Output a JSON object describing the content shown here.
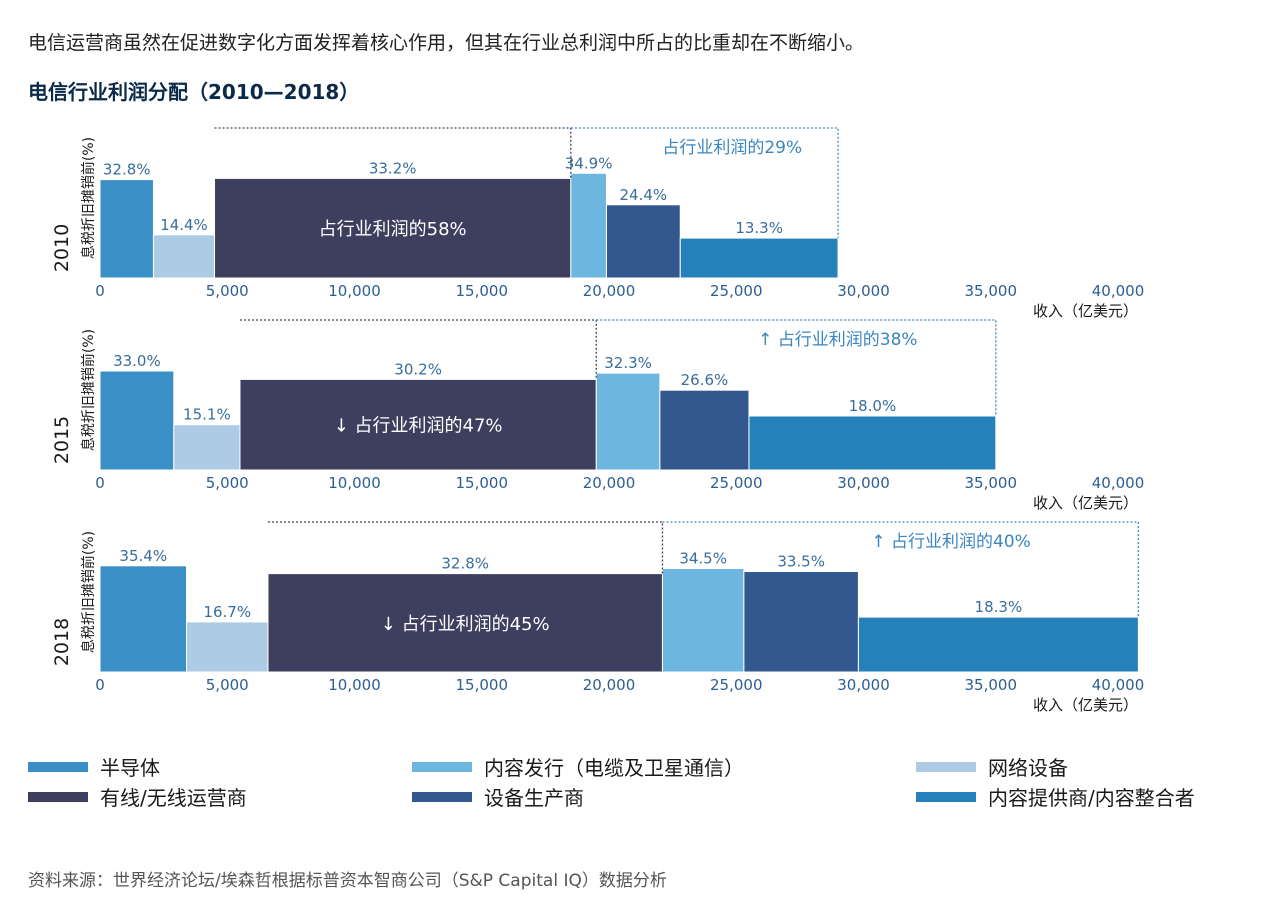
{
  "headline": "电信运营商虽然在促进数字化方面发挥着核心作用，但其在行业总利润中所占的比重却在不断缩小。",
  "chart_title": "电信行业利润分配（2010—2018）",
  "source": "资料来源：世界经济论坛/埃森哲根据标普资本智商公司（S&P Capital IQ）数据分析",
  "colors": {
    "semiconductor": "#3a8fc6",
    "network": "#aecbe6",
    "operator": "#3e3f5e",
    "content_dist": "#6db6df",
    "equipment": "#33588f",
    "content_provider": "#2680ba",
    "axis_text": "#2c5e93",
    "label_text": "#3a6e9c",
    "callout": "#3a86c0"
  },
  "legend": [
    {
      "key": "semiconductor",
      "label": "半导体"
    },
    {
      "key": "content_dist",
      "label": "内容发行（电缆及卫星通信）"
    },
    {
      "key": "network",
      "label": "网络设备"
    },
    {
      "key": "operator",
      "label": "有线/无线运营商"
    },
    {
      "key": "equipment",
      "label": "设备生产商"
    },
    {
      "key": "content_provider",
      "label": "内容提供商/内容整合者"
    }
  ],
  "chart_data": {
    "type": "bar",
    "subtype": "marimekko",
    "xlabel": "收入（亿美元）",
    "ylabel": "息税折旧摊销前(%)",
    "xlim": [
      0,
      40000
    ],
    "xticks": [
      0,
      5000,
      10000,
      15000,
      20000,
      25000,
      30000,
      35000,
      40000
    ],
    "xtick_labels": [
      "0",
      "5,000",
      "10,000",
      "15,000",
      "20,000",
      "25,000",
      "30,000",
      "35,000",
      "40,000"
    ],
    "panels": [
      {
        "year": "2010",
        "segments": [
          {
            "key": "semiconductor",
            "start": 0,
            "end": 2100,
            "value": 32.8,
            "label": "32.8%"
          },
          {
            "key": "network",
            "start": 2100,
            "end": 4500,
            "value": 14.4,
            "label": "14.4%"
          },
          {
            "key": "operator",
            "start": 4500,
            "end": 18500,
            "value": 33.2,
            "label": "33.2%"
          },
          {
            "key": "content_dist",
            "start": 18500,
            "end": 19900,
            "value": 34.9,
            "label": "34.9%"
          },
          {
            "key": "equipment",
            "start": 19900,
            "end": 22800,
            "value": 24.4,
            "label": "24.4%"
          },
          {
            "key": "content_provider",
            "start": 22800,
            "end": 29000,
            "value": 13.3,
            "label": "13.3%"
          }
        ],
        "operator_share": "占行业利润的58%",
        "content_share": "占行业利润的29%",
        "operator_trend": "",
        "content_trend": ""
      },
      {
        "year": "2015",
        "segments": [
          {
            "key": "semiconductor",
            "start": 0,
            "end": 2900,
            "value": 33.0,
            "label": "33.0%"
          },
          {
            "key": "network",
            "start": 2900,
            "end": 5500,
            "value": 15.1,
            "label": "15.1%"
          },
          {
            "key": "operator",
            "start": 5500,
            "end": 19500,
            "value": 30.2,
            "label": "30.2%"
          },
          {
            "key": "content_dist",
            "start": 19500,
            "end": 22000,
            "value": 32.3,
            "label": "32.3%"
          },
          {
            "key": "equipment",
            "start": 22000,
            "end": 25500,
            "value": 26.6,
            "label": "26.6%"
          },
          {
            "key": "content_provider",
            "start": 25500,
            "end": 35200,
            "value": 18.0,
            "label": "18.0%"
          }
        ],
        "operator_share": "占行业利润的47%",
        "content_share": "占行业利润的38%",
        "operator_trend": "down",
        "content_trend": "up"
      },
      {
        "year": "2018",
        "segments": [
          {
            "key": "semiconductor",
            "start": 0,
            "end": 3400,
            "value": 35.4,
            "label": "35.4%"
          },
          {
            "key": "network",
            "start": 3400,
            "end": 6600,
            "value": 16.7,
            "label": "16.7%"
          },
          {
            "key": "operator",
            "start": 6600,
            "end": 22100,
            "value": 32.8,
            "label": "32.8%"
          },
          {
            "key": "content_dist",
            "start": 22100,
            "end": 25300,
            "value": 34.5,
            "label": "34.5%"
          },
          {
            "key": "equipment",
            "start": 25300,
            "end": 29800,
            "value": 33.5,
            "label": "33.5%"
          },
          {
            "key": "content_provider",
            "start": 29800,
            "end": 40800,
            "value": 18.3,
            "label": "18.3%"
          }
        ],
        "operator_share": "占行业利润的45%",
        "content_share": "占行业利润的40%",
        "operator_trend": "down",
        "content_trend": "up"
      }
    ]
  }
}
